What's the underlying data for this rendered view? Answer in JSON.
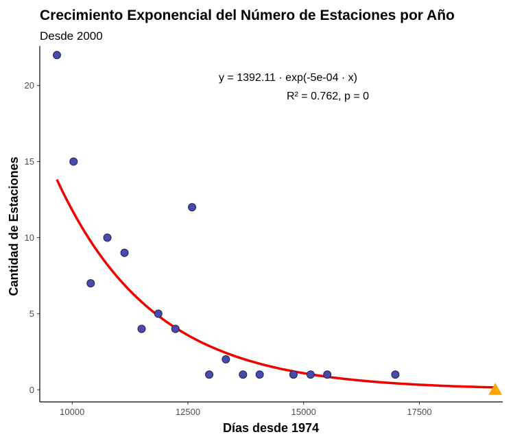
{
  "chart_data": {
    "type": "scatter",
    "title": "Crecimiento Exponencial del Número de Estaciones por Año",
    "subtitle": "Desde 2000",
    "xlabel": "Días desde 1974",
    "ylabel": "Cantidad de Estaciones",
    "xlim": [
      9300,
      19300
    ],
    "ylim": [
      -0.8,
      22.6
    ],
    "x_ticks": [
      10000,
      12500,
      15000,
      17500
    ],
    "y_ticks": [
      0,
      5,
      10,
      15,
      20
    ],
    "grid": false,
    "points": [
      {
        "x": 9670,
        "y": 22
      },
      {
        "x": 10030,
        "y": 15
      },
      {
        "x": 10400,
        "y": 7
      },
      {
        "x": 10760,
        "y": 10
      },
      {
        "x": 11130,
        "y": 9
      },
      {
        "x": 11500,
        "y": 4
      },
      {
        "x": 11860,
        "y": 5
      },
      {
        "x": 12230,
        "y": 4
      },
      {
        "x": 12590,
        "y": 12
      },
      {
        "x": 12960,
        "y": 1
      },
      {
        "x": 13320,
        "y": 2
      },
      {
        "x": 13690,
        "y": 1
      },
      {
        "x": 14050,
        "y": 1
      },
      {
        "x": 14780,
        "y": 1
      },
      {
        "x": 15150,
        "y": 1
      },
      {
        "x": 15510,
        "y": 1
      },
      {
        "x": 16980,
        "y": 1
      }
    ],
    "highlight_point": {
      "x": 19140,
      "y": 0,
      "color": "#ffa500",
      "shape": "triangle"
    },
    "fit": {
      "type": "exponential",
      "a": 1392.11,
      "b": -0.000477,
      "x_range": [
        9670,
        19140
      ],
      "color": "#ee0000"
    },
    "point_fill": "#4a4aaa",
    "point_stroke": "#22225a",
    "annotation": {
      "equation": "y = 1392.11 · exp(-5e-04 · x)",
      "stats": "R² = 0.762, p = 0"
    }
  }
}
